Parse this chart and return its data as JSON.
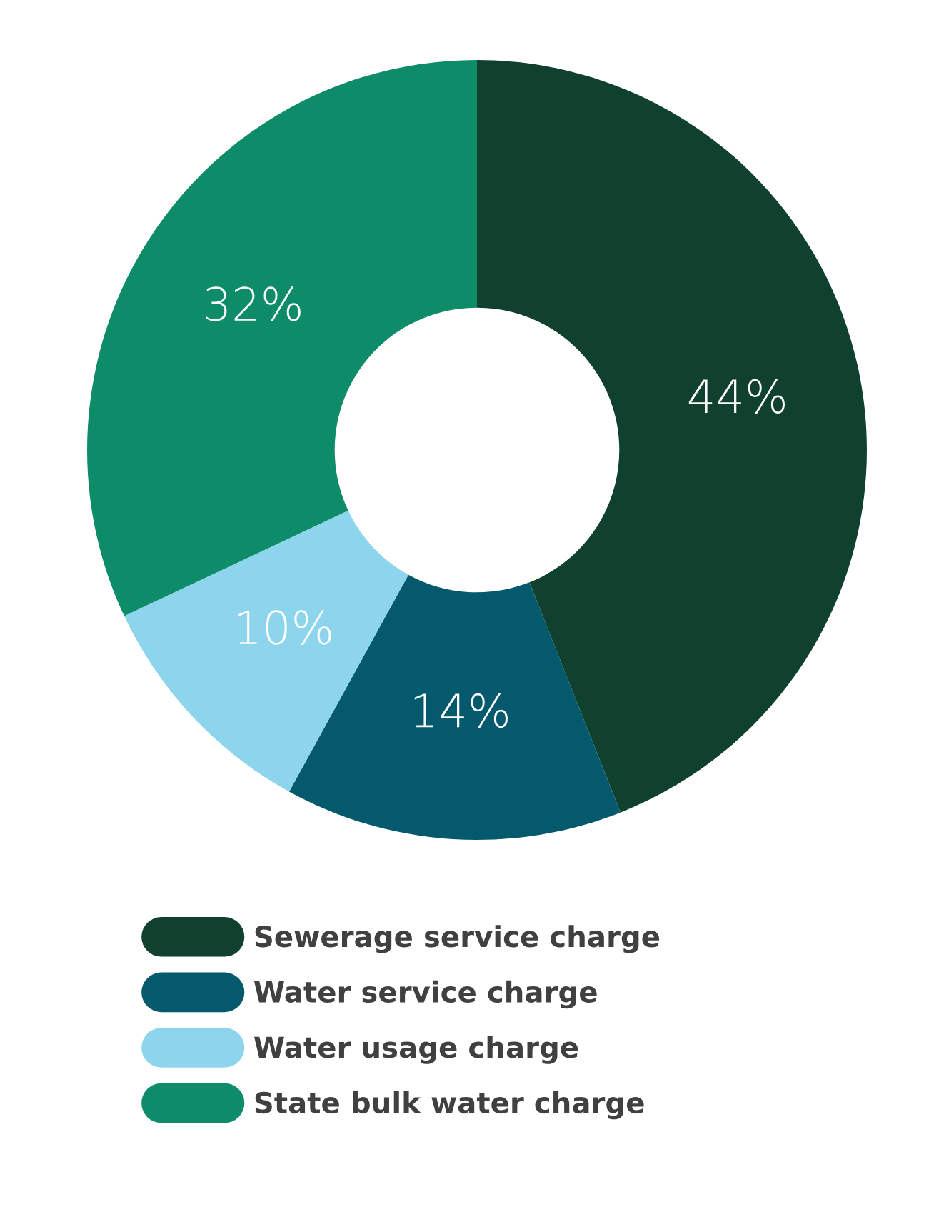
{
  "chart_data": {
    "type": "donut",
    "categories": [
      "Sewerage service charge",
      "Water service charge",
      "Water usage charge",
      "State bulk water charge"
    ],
    "values": [
      44,
      14,
      10,
      32
    ],
    "colors": [
      "#10412f",
      "#045a6c",
      "#8dd5ec",
      "#0e8c6a"
    ],
    "value_labels": [
      "44%",
      "14%",
      "10%",
      "32%"
    ],
    "legend": "bottom"
  }
}
